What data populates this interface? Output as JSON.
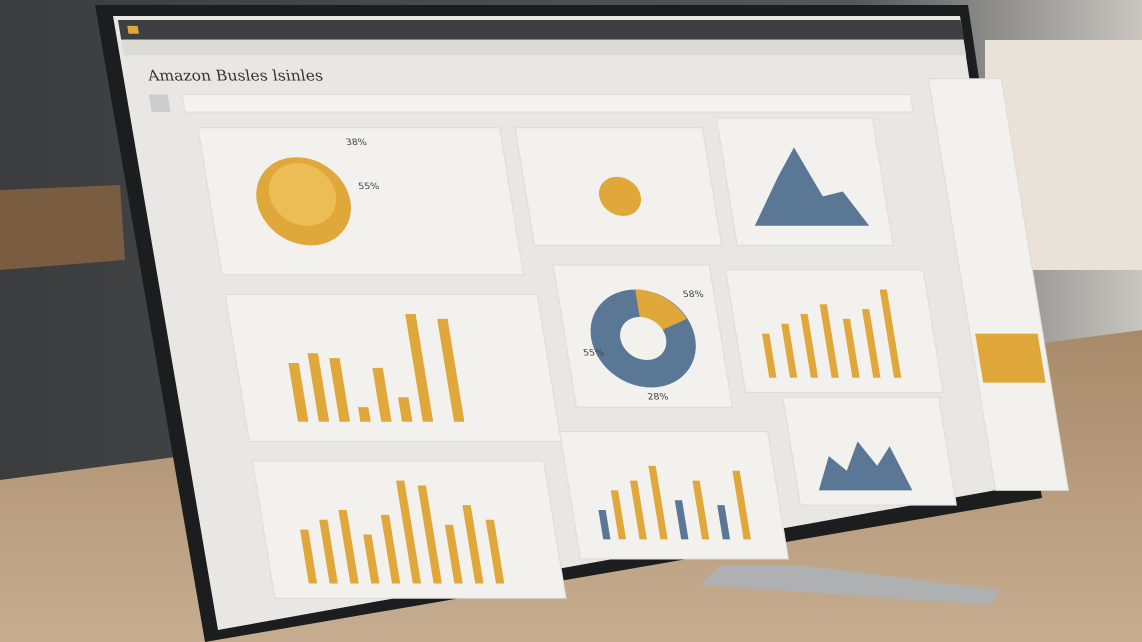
{
  "header": {
    "title": "Amazon Busles lsinles"
  },
  "panels": [
    {
      "label": "38%"
    },
    {
      "label": "55%"
    },
    {
      "label": "58%"
    },
    {
      "label": "55%"
    },
    {
      "label": "28%"
    }
  ]
}
